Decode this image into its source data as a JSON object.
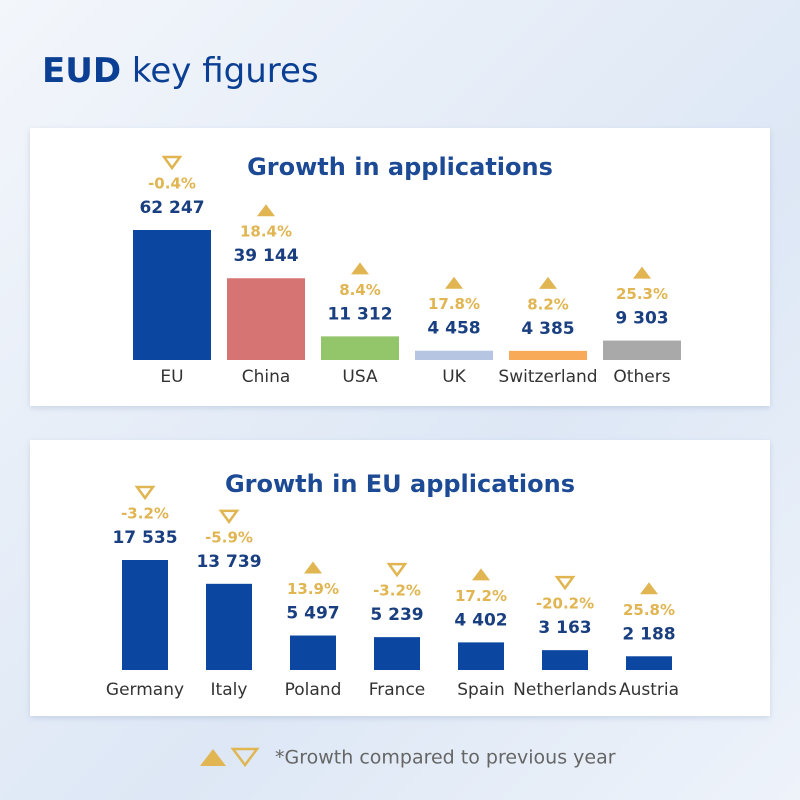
{
  "header": {
    "title_bold": "EUD",
    "title_rest": "key figures"
  },
  "chart_data": [
    {
      "type": "bar",
      "title": "Growth in applications",
      "categories": [
        "EU",
        "China",
        "USA",
        "UK",
        "Switzerland",
        "Others"
      ],
      "values": [
        62247,
        39144,
        11312,
        4458,
        4385,
        9303
      ],
      "value_labels": [
        "62 247",
        "39 144",
        "11 312",
        "4 458",
        "4 385",
        "9 303"
      ],
      "colors": [
        "#0b47a1",
        "#d57473",
        "#93c56a",
        "#b5c5e2",
        "#f8aa59",
        "#a9a9a9"
      ],
      "growth_values": [
        -0.4,
        18.4,
        8.4,
        17.8,
        8.2,
        25.3
      ],
      "growth_labels": [
        "-0.4%",
        "18.4%",
        "8.4%",
        "17.8%",
        "8.2%",
        "25.3%"
      ]
    },
    {
      "type": "bar",
      "title": "Growth in EU applications",
      "categories": [
        "Germany",
        "Italy",
        "Poland",
        "France",
        "Spain",
        "Netherlands",
        "Austria"
      ],
      "values": [
        17535,
        13739,
        5497,
        5239,
        4402,
        3163,
        2188
      ],
      "value_labels": [
        "17 535",
        "13 739",
        "5 497",
        "5 239",
        "4 402",
        "3 163",
        "2 188"
      ],
      "color": "#0b47a1",
      "growth_values": [
        -3.2,
        -5.9,
        13.9,
        -3.2,
        17.2,
        -20.2,
        25.8
      ],
      "growth_labels": [
        "-3.2%",
        "-5.9%",
        "13.9%",
        "-3.2%",
        "17.2%",
        "-20.2%",
        "25.8%"
      ]
    }
  ],
  "footnote": "*Growth compared to previous year"
}
